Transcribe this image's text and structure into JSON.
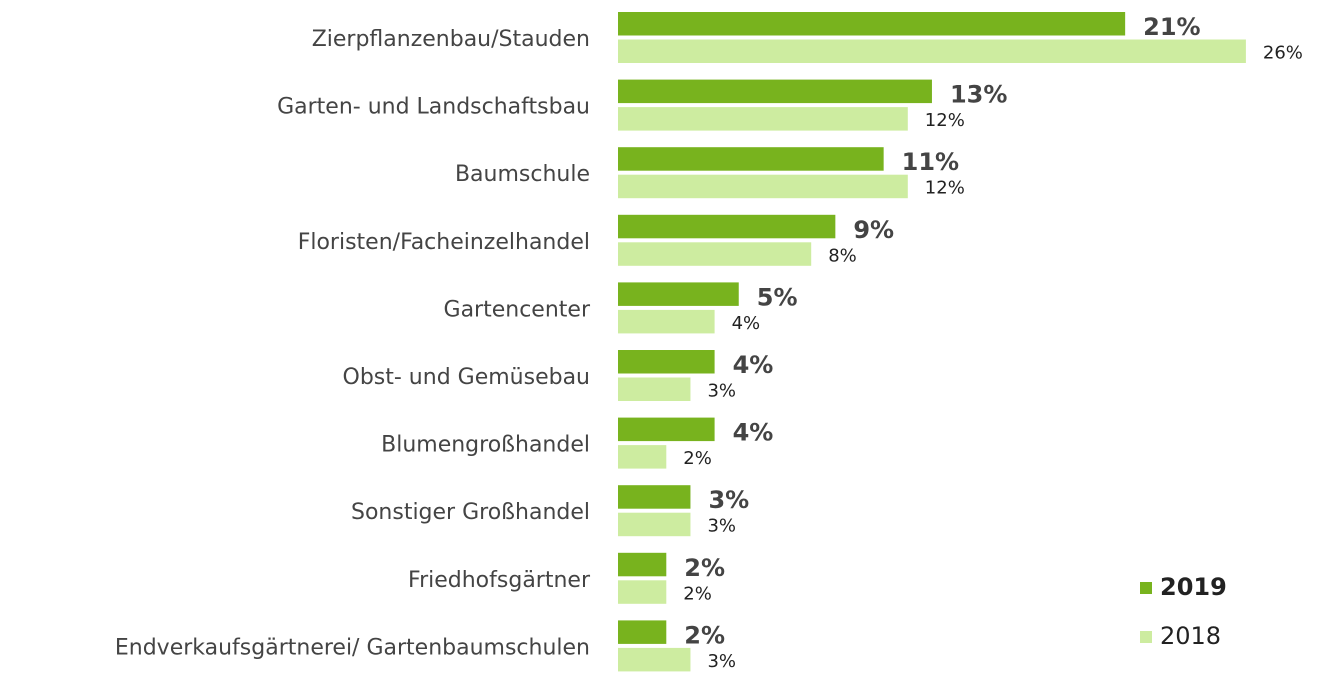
{
  "chart_data": {
    "type": "bar",
    "orientation": "horizontal",
    "categories": [
      "Zierpflanzenbau/Stauden",
      "Garten- und Landschaftsbau",
      "Baumschule",
      "Floristen/Facheinzelhandel",
      "Gartencenter",
      "Obst- und Gemüsebau",
      "Blumengroßhandel",
      "Sonstiger Großhandel",
      "Friedhofsgärtner",
      "Endverkaufsgärtnerei/ Gartenbaumschulen"
    ],
    "series": [
      {
        "name": "2019",
        "color": "#78b31e",
        "values": [
          21,
          13,
          11,
          9,
          5,
          4,
          4,
          3,
          2,
          2
        ],
        "value_labels": [
          "21%",
          "13%",
          "11%",
          "9%",
          "5%",
          "4%",
          "4%",
          "3%",
          "2%",
          "2%"
        ]
      },
      {
        "name": "2018",
        "color": "#cdeca0",
        "values": [
          26,
          12,
          12,
          8,
          4,
          3,
          2,
          3,
          2,
          3
        ],
        "value_labels": [
          "26%",
          "12%",
          "12%",
          "8%",
          "4%",
          "3%",
          "2%",
          "3%",
          "2%",
          "3%"
        ]
      }
    ],
    "legend": "bottom-right"
  }
}
